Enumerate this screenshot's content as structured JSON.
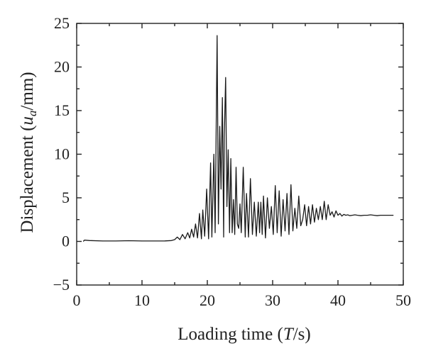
{
  "chart_data": {
    "type": "line",
    "xlabel_parts": [
      "Loading time (",
      "T",
      "/s)"
    ],
    "ylabel_parts": [
      "Displacement (",
      "u",
      "a",
      "/mm)"
    ],
    "xlim": [
      0,
      50
    ],
    "ylim": [
      -5,
      25
    ],
    "xticks": [
      "0",
      "10",
      "20",
      "30",
      "40",
      "50"
    ],
    "yticks": [
      "25",
      "20",
      "15",
      "10",
      "5",
      "0",
      "−5"
    ],
    "grid": false,
    "legend": "none",
    "series": [
      {
        "x": [
          1.0,
          1.2,
          2.0,
          4.0,
          6.0,
          8.0,
          10.0,
          12.0,
          13.5,
          14.5,
          15.0,
          15.4,
          15.8,
          16.2,
          16.6,
          17.0,
          17.3,
          17.6,
          17.9,
          18.2,
          18.5,
          18.8,
          19.1,
          19.3,
          19.6,
          19.9,
          20.2,
          20.5,
          20.7,
          21.0,
          21.2,
          21.5,
          21.7,
          21.9,
          22.1,
          22.3,
          22.5,
          22.6,
          22.8,
          23.0,
          23.2,
          23.4,
          23.6,
          23.8,
          24.0,
          24.2,
          24.4,
          24.6,
          24.8,
          25.0,
          25.2,
          25.5,
          25.8,
          26.0,
          26.3,
          26.6,
          26.9,
          27.2,
          27.5,
          27.8,
          28.0,
          28.2,
          28.4,
          28.6,
          28.9,
          29.2,
          29.5,
          29.8,
          30.1,
          30.4,
          30.7,
          31.0,
          31.3,
          31.6,
          31.9,
          32.2,
          32.5,
          32.8,
          33.1,
          33.4,
          33.7,
          34.0,
          34.3,
          34.6,
          34.9,
          35.2,
          35.5,
          35.8,
          36.1,
          36.4,
          36.7,
          37.0,
          37.3,
          37.6,
          37.9,
          38.2,
          38.5,
          38.8,
          39.1,
          39.4,
          39.7,
          40.0,
          40.3,
          40.6,
          40.9,
          41.2,
          41.5,
          41.8,
          42.2,
          42.6,
          43.0,
          43.5,
          44.0,
          44.5,
          45.0,
          45.5,
          46.0,
          46.5,
          47.0,
          47.5,
          48.0,
          48.5
        ],
        "y": [
          0.0,
          0.15,
          0.1,
          0.05,
          0.05,
          0.08,
          0.05,
          0.05,
          0.06,
          0.1,
          0.2,
          0.5,
          0.2,
          0.8,
          0.3,
          1.0,
          0.4,
          1.4,
          0.5,
          2.0,
          0.4,
          3.2,
          0.3,
          3.6,
          0.6,
          6.0,
          0.3,
          9.0,
          0.5,
          10.0,
          1.0,
          23.6,
          2.0,
          13.2,
          6.0,
          16.5,
          0.5,
          12.0,
          18.8,
          4.0,
          10.5,
          1.0,
          9.5,
          1.0,
          4.8,
          0.8,
          8.5,
          2.0,
          1.5,
          4.3,
          1.0,
          8.5,
          0.5,
          5.5,
          0.5,
          7.2,
          0.8,
          4.5,
          0.6,
          4.5,
          1.0,
          4.5,
          0.8,
          5.2,
          0.4,
          5.0,
          1.5,
          4.0,
          0.8,
          6.4,
          1.0,
          5.8,
          0.6,
          4.8,
          1.2,
          5.5,
          0.8,
          6.5,
          1.2,
          3.8,
          1.5,
          5.2,
          1.8,
          2.5,
          4.2,
          1.8,
          4.0,
          2.0,
          4.2,
          2.2,
          3.8,
          2.5,
          4.0,
          2.5,
          4.6,
          2.5,
          4.2,
          3.0,
          3.4,
          2.8,
          3.5,
          3.0,
          3.2,
          2.9,
          3.1,
          3.0,
          3.05,
          2.95,
          3.0,
          3.05,
          3.0,
          2.95,
          3.0,
          3.0,
          3.05,
          3.0,
          2.95,
          3.0,
          3.0,
          3.0,
          3.0,
          3.0
        ]
      }
    ]
  }
}
